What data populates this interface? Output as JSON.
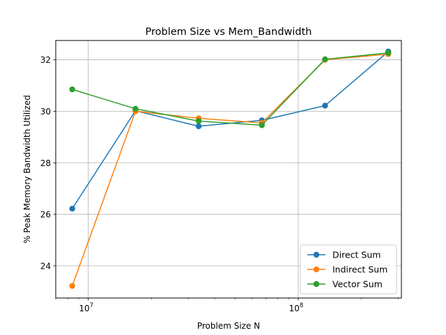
{
  "chart_data": {
    "type": "line",
    "title": "Problem Size vs Mem_Bandwidth",
    "xlabel": "Problem Size N",
    "ylabel": "% Peak Memory Bandwidth Utilized",
    "xscale": "log",
    "xlim": [
      7000000,
      310000000
    ],
    "ylim": [
      22.75,
      32.75
    ],
    "x": [
      8388608,
      16777216,
      33554432,
      67108864,
      134217728,
      268435456
    ],
    "x_ticks": [
      {
        "value": 10000000,
        "base": "10",
        "exp": "7"
      },
      {
        "value": 100000000,
        "base": "10",
        "exp": "8"
      }
    ],
    "y_ticks": [
      24,
      26,
      28,
      30,
      32
    ],
    "grid": true,
    "legend_position": "lower right",
    "series": [
      {
        "name": "Direct Sum",
        "color": "#1f77b4",
        "values": [
          26.22,
          30.02,
          29.42,
          29.65,
          30.22,
          32.32
        ]
      },
      {
        "name": "Indirect Sum",
        "color": "#ff7f0e",
        "values": [
          23.22,
          30.0,
          29.73,
          29.55,
          32.0,
          32.22
        ]
      },
      {
        "name": "Vector Sum",
        "color": "#2ca02c",
        "values": [
          30.85,
          30.1,
          29.62,
          29.46,
          32.02,
          32.27
        ]
      }
    ]
  }
}
